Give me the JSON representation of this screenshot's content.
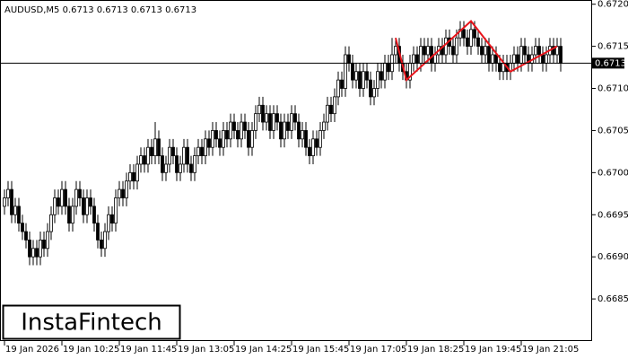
{
  "chart_data": {
    "type": "candlestick",
    "title": "AUDUSD,M5  0.6713 0.6713 0.6713 0.6713",
    "logo": "InstaFintech",
    "last_price": 0.6713,
    "ylim": [
      0.668,
      0.67205
    ],
    "yticks": [
      0.6685,
      {
        "value": 0.669,
        "label": "0.6690"
      },
      0.6695,
      {
        "value": 0.67,
        "label": "0.6700"
      },
      0.6705,
      {
        "value": 0.671,
        "label": "0.6710"
      },
      0.6715,
      {
        "value": 0.672,
        "label": "0.6720"
      }
    ],
    "xticks": [
      {
        "value": 0,
        "label": "19 Jan 2026"
      },
      {
        "value": 16,
        "label": "19 Jan 10:25"
      },
      {
        "value": 32,
        "label": "19 Jan 11:45"
      },
      {
        "value": 48,
        "label": "19 Jan 13:05"
      },
      {
        "value": 64,
        "label": "19 Jan 14:25"
      },
      {
        "value": 80,
        "label": "19 Jan 15:45"
      },
      {
        "value": 96,
        "label": "19 Jan 17:05"
      },
      {
        "value": 112,
        "label": "19 Jan 18:25"
      },
      {
        "value": 128,
        "label": "19 Jan 19:45"
      },
      {
        "value": 144,
        "label": "19 Jan 21:05"
      }
    ],
    "up_color": "#ffffff",
    "down_color": "#000000",
    "open": [
      0.6696,
      0.6697,
      0.6698,
      0.6695,
      0.6696,
      0.6694,
      0.6693,
      0.6692,
      0.669,
      0.6691,
      0.669,
      0.6692,
      0.6691,
      0.6693,
      0.6695,
      0.6697,
      0.6696,
      0.6698,
      0.6696,
      0.6694,
      0.6696,
      0.6698,
      0.6697,
      0.6695,
      0.6697,
      0.6696,
      0.6694,
      0.6692,
      0.6691,
      0.6693,
      0.6695,
      0.6694,
      0.6697,
      0.6698,
      0.6697,
      0.6699,
      0.67,
      0.6699,
      0.6701,
      0.6702,
      0.6701,
      0.6703,
      0.6702,
      0.6704,
      0.6702,
      0.67,
      0.6701,
      0.6703,
      0.6702,
      0.67,
      0.6701,
      0.6703,
      0.6701,
      0.67,
      0.6702,
      0.6703,
      0.6702,
      0.6704,
      0.6703,
      0.6705,
      0.6704,
      0.6703,
      0.6705,
      0.6704,
      0.6706,
      0.6705,
      0.6704,
      0.6706,
      0.6705,
      0.6703,
      0.6705,
      0.6707,
      0.6708,
      0.6706,
      0.6707,
      0.6705,
      0.6707,
      0.6706,
      0.6704,
      0.6706,
      0.6705,
      0.6707,
      0.6706,
      0.6704,
      0.6705,
      0.6703,
      0.6702,
      0.6704,
      0.6703,
      0.6705,
      0.6706,
      0.6708,
      0.6707,
      0.6709,
      0.6711,
      0.671,
      0.6714,
      0.6713,
      0.6711,
      0.6712,
      0.671,
      0.6712,
      0.6711,
      0.6709,
      0.671,
      0.6712,
      0.6711,
      0.6713,
      0.6712,
      0.6714,
      0.6715,
      0.6713,
      0.6712,
      0.6711,
      0.6713,
      0.6714,
      0.6713,
      0.6715,
      0.6714,
      0.6715,
      0.6713,
      0.6714,
      0.6715,
      0.6714,
      0.6716,
      0.6715,
      0.6714,
      0.6716,
      0.6717,
      0.6716,
      0.6715,
      0.6717,
      0.6716,
      0.6715,
      0.6714,
      0.6715,
      0.6713,
      0.6714,
      0.6713,
      0.6712,
      0.6713,
      0.6712,
      0.6713,
      0.6714,
      0.6713,
      0.6715,
      0.6714,
      0.6713,
      0.6714,
      0.6715,
      0.6714,
      0.6713,
      0.6714,
      0.6715,
      0.6714,
      0.6715
    ],
    "high": [
      0.6698,
      0.6699,
      0.6699,
      0.6697,
      0.6697,
      0.6695,
      0.6694,
      0.6693,
      0.6692,
      0.6692,
      0.6693,
      0.6693,
      0.6694,
      0.6696,
      0.6698,
      0.6698,
      0.6699,
      0.6699,
      0.6697,
      0.6697,
      0.6699,
      0.6699,
      0.6698,
      0.6698,
      0.6698,
      0.6697,
      0.6695,
      0.6693,
      0.6694,
      0.6696,
      0.6696,
      0.6698,
      0.6699,
      0.6699,
      0.67,
      0.6701,
      0.6701,
      0.6702,
      0.6703,
      0.6703,
      0.6704,
      0.6704,
      0.6706,
      0.6705,
      0.6703,
      0.6702,
      0.6704,
      0.6704,
      0.6703,
      0.6702,
      0.6704,
      0.6704,
      0.6702,
      0.6703,
      0.6704,
      0.6704,
      0.6705,
      0.6705,
      0.6706,
      0.6706,
      0.6705,
      0.6706,
      0.6706,
      0.6707,
      0.6707,
      0.6706,
      0.6707,
      0.6707,
      0.6706,
      0.6706,
      0.6708,
      0.6709,
      0.6709,
      0.6708,
      0.6708,
      0.6708,
      0.6708,
      0.6707,
      0.6707,
      0.6707,
      0.6708,
      0.6708,
      0.6707,
      0.6706,
      0.6706,
      0.6704,
      0.6705,
      0.6705,
      0.6706,
      0.6707,
      0.6709,
      0.6709,
      0.671,
      0.6712,
      0.6712,
      0.6715,
      0.6715,
      0.6714,
      0.6713,
      0.6713,
      0.6713,
      0.6713,
      0.6712,
      0.6711,
      0.6713,
      0.6713,
      0.6714,
      0.6714,
      0.6716,
      0.6716,
      0.6716,
      0.6714,
      0.6713,
      0.6714,
      0.6715,
      0.6715,
      0.6716,
      0.6716,
      0.6716,
      0.6716,
      0.6715,
      0.6716,
      0.6716,
      0.6717,
      0.6717,
      0.6716,
      0.6717,
      0.6718,
      0.6718,
      0.6717,
      0.6718,
      0.6718,
      0.6717,
      0.6716,
      0.6716,
      0.6716,
      0.6715,
      0.6715,
      0.6714,
      0.6714,
      0.6714,
      0.6714,
      0.6715,
      0.6715,
      0.6716,
      0.6716,
      0.6715,
      0.6715,
      0.6716,
      0.6716,
      0.6715,
      0.6715,
      0.6716,
      0.6716,
      0.6716,
      0.6716
    ],
    "low": [
      0.6695,
      0.6696,
      0.6694,
      0.6694,
      0.6693,
      0.6692,
      0.6691,
      0.6689,
      0.6689,
      0.6689,
      0.6689,
      0.669,
      0.669,
      0.6692,
      0.6694,
      0.6695,
      0.6695,
      0.6695,
      0.6693,
      0.6693,
      0.6695,
      0.6696,
      0.6694,
      0.6694,
      0.6695,
      0.6693,
      0.6691,
      0.669,
      0.669,
      0.6692,
      0.6693,
      0.6693,
      0.6696,
      0.6696,
      0.6696,
      0.6698,
      0.6698,
      0.6698,
      0.67,
      0.67,
      0.67,
      0.6701,
      0.6701,
      0.6701,
      0.6699,
      0.6699,
      0.67,
      0.6701,
      0.6699,
      0.6699,
      0.67,
      0.67,
      0.6699,
      0.6699,
      0.6701,
      0.6701,
      0.6701,
      0.6702,
      0.6702,
      0.6703,
      0.6702,
      0.6702,
      0.6703,
      0.6703,
      0.6704,
      0.6703,
      0.6703,
      0.6704,
      0.6702,
      0.6702,
      0.6704,
      0.6706,
      0.6705,
      0.6705,
      0.6704,
      0.6704,
      0.6705,
      0.6703,
      0.6703,
      0.6704,
      0.6704,
      0.6705,
      0.6703,
      0.6703,
      0.6702,
      0.6701,
      0.6701,
      0.6702,
      0.6702,
      0.6704,
      0.6705,
      0.6706,
      0.6706,
      0.6708,
      0.6709,
      0.6709,
      0.6712,
      0.671,
      0.671,
      0.6709,
      0.6709,
      0.671,
      0.6708,
      0.6708,
      0.6709,
      0.671,
      0.671,
      0.6711,
      0.6711,
      0.6713,
      0.6712,
      0.6711,
      0.671,
      0.671,
      0.6712,
      0.6712,
      0.6712,
      0.6713,
      0.6713,
      0.6712,
      0.6712,
      0.6713,
      0.6713,
      0.6713,
      0.6714,
      0.6713,
      0.6713,
      0.6715,
      0.6715,
      0.6714,
      0.6714,
      0.6715,
      0.6714,
      0.6713,
      0.6713,
      0.6712,
      0.6712,
      0.6712,
      0.6711,
      0.6711,
      0.6711,
      0.6711,
      0.6712,
      0.6712,
      0.6712,
      0.6713,
      0.6712,
      0.6712,
      0.6713,
      0.6713,
      0.6712,
      0.6712,
      0.6713,
      0.6713,
      0.6713,
      0.6712
    ],
    "close": [
      0.6697,
      0.6698,
      0.6695,
      0.6696,
      0.6694,
      0.6693,
      0.6692,
      0.669,
      0.6691,
      0.669,
      0.6692,
      0.6691,
      0.6693,
      0.6695,
      0.6697,
      0.6696,
      0.6698,
      0.6696,
      0.6694,
      0.6696,
      0.6698,
      0.6697,
      0.6695,
      0.6697,
      0.6696,
      0.6694,
      0.6692,
      0.6691,
      0.6693,
      0.6695,
      0.6694,
      0.6697,
      0.6698,
      0.6697,
      0.6699,
      0.67,
      0.6699,
      0.6701,
      0.6702,
      0.6701,
      0.6703,
      0.6702,
      0.6704,
      0.6702,
      0.67,
      0.6701,
      0.6703,
      0.6702,
      0.67,
      0.6701,
      0.6703,
      0.6701,
      0.67,
      0.6702,
      0.6703,
      0.6702,
      0.6704,
      0.6703,
      0.6705,
      0.6704,
      0.6703,
      0.6705,
      0.6704,
      0.6706,
      0.6705,
      0.6704,
      0.6706,
      0.6705,
      0.6703,
      0.6705,
      0.6707,
      0.6708,
      0.6706,
      0.6707,
      0.6705,
      0.6707,
      0.6706,
      0.6704,
      0.6706,
      0.6705,
      0.6707,
      0.6706,
      0.6704,
      0.6705,
      0.6703,
      0.6702,
      0.6704,
      0.6703,
      0.6705,
      0.6706,
      0.6708,
      0.6707,
      0.6709,
      0.6711,
      0.671,
      0.6714,
      0.6713,
      0.6711,
      0.6712,
      0.671,
      0.6712,
      0.6711,
      0.6709,
      0.671,
      0.6712,
      0.6711,
      0.6713,
      0.6712,
      0.6714,
      0.6715,
      0.6713,
      0.6712,
      0.6711,
      0.6713,
      0.6714,
      0.6713,
      0.6715,
      0.6714,
      0.6715,
      0.6713,
      0.6714,
      0.6715,
      0.6714,
      0.6716,
      0.6715,
      0.6714,
      0.6716,
      0.6717,
      0.6716,
      0.6715,
      0.6717,
      0.6716,
      0.6715,
      0.6714,
      0.6715,
      0.6713,
      0.6714,
      0.6713,
      0.6712,
      0.6713,
      0.6712,
      0.6713,
      0.6714,
      0.6713,
      0.6715,
      0.6714,
      0.6713,
      0.6714,
      0.6715,
      0.6714,
      0.6713,
      0.6714,
      0.6715,
      0.6714,
      0.6715,
      0.6713
    ],
    "pattern": {
      "color": "#e8141b",
      "x": [
        109,
        112,
        130,
        141,
        154
      ],
      "values": [
        0.6716,
        0.6711,
        0.6718,
        0.6712,
        0.6715
      ]
    }
  }
}
